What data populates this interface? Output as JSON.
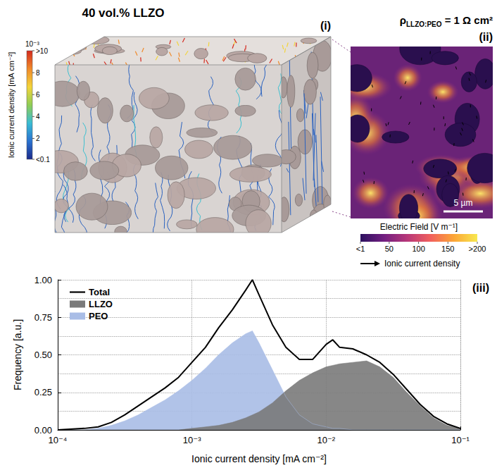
{
  "title": "40 vol.% LLZO",
  "panel_i": {
    "label": "(i)",
    "colorbar": {
      "title": "Ionic current density [mA cm⁻²]",
      "scale_label": "10⁻³",
      "range": [
        0.1,
        10
      ],
      "ticks": [
        {
          "value": 0.1,
          "label": "<0.1"
        },
        2,
        4,
        6,
        8,
        {
          "value": 10,
          "label": ">10"
        }
      ]
    }
  },
  "panel_ii": {
    "label": "(ii)",
    "title_symbol": "ρ",
    "title_subscript": "LLZO:PEO",
    "title_rest": " = 1 Ω cm²",
    "scale_bar": "5 µm",
    "colorbar": {
      "title": "Electric Field [V m⁻¹]",
      "range": [
        1,
        200
      ],
      "ticks": [
        {
          "value": 1,
          "label": "<1"
        },
        50,
        100,
        150,
        {
          "value": 200,
          "label": ">200"
        }
      ]
    },
    "arrow_legend": "Ionic current density"
  },
  "chart_data": {
    "type": "area",
    "label": "(iii)",
    "x_label": "Ionic current density [mA cm⁻²]",
    "y_label": "Frequency [a.u.]",
    "log": "x",
    "grid": true,
    "legend": "upper left",
    "x": [
      0.0001,
      0.000158,
      0.0002,
      0.000251,
      0.000316,
      0.000398,
      0.000501,
      0.000631,
      0.000794,
      0.001,
      0.00126,
      0.00158,
      0.002,
      0.00251,
      0.00282,
      0.00316,
      0.00398,
      0.00501,
      0.00631,
      0.00794,
      0.01,
      0.0112,
      0.0126,
      0.0158,
      0.02,
      0.0251,
      0.0316,
      0.0398,
      0.0501,
      0.0631,
      0.0794,
      0.1
    ],
    "series": [
      {
        "name": "PEO",
        "type": "area",
        "color": "#a9bde6",
        "values": [
          0,
          0,
          0.01,
          0.03,
          0.06,
          0.1,
          0.15,
          0.2,
          0.26,
          0.33,
          0.41,
          0.5,
          0.58,
          0.64,
          0.66,
          0.58,
          0.4,
          0.22,
          0.1,
          0.04,
          0.02,
          0.01,
          0.01,
          0,
          0,
          0,
          0,
          0,
          0,
          0,
          0,
          0
        ]
      },
      {
        "name": "LLZO",
        "type": "area",
        "color": "#7a7a7a",
        "values": [
          0,
          0,
          0,
          0,
          0,
          0,
          0,
          0,
          0,
          0.01,
          0.02,
          0.03,
          0.05,
          0.08,
          0.1,
          0.12,
          0.18,
          0.26,
          0.33,
          0.38,
          0.42,
          0.43,
          0.44,
          0.45,
          0.46,
          0.42,
          0.35,
          0.25,
          0.16,
          0.08,
          0.03,
          0.01
        ]
      },
      {
        "name": "Total",
        "type": "line",
        "color": "#000000",
        "values": [
          0,
          0.01,
          0.02,
          0.05,
          0.1,
          0.16,
          0.22,
          0.28,
          0.35,
          0.45,
          0.55,
          0.68,
          0.8,
          0.93,
          1.0,
          0.9,
          0.7,
          0.55,
          0.47,
          0.47,
          0.57,
          0.6,
          0.55,
          0.54,
          0.5,
          0.45,
          0.37,
          0.27,
          0.17,
          0.09,
          0.04,
          0.01
        ]
      }
    ],
    "legend_order": [
      "Total",
      "LLZO",
      "PEO"
    ],
    "xlim": [
      0.0001,
      0.1
    ],
    "xticks": [
      {
        "value": 0.0001,
        "label": "10⁻⁴"
      },
      {
        "value": 0.001,
        "label": "10⁻³"
      },
      {
        "value": 0.01,
        "label": "10⁻²"
      },
      {
        "value": 0.1,
        "label": "10⁻¹"
      }
    ],
    "ylim": [
      0,
      1
    ],
    "yticks": [
      {
        "value": 0,
        "label": "0.00"
      },
      {
        "value": 0.25,
        "label": "0.25"
      },
      {
        "value": 0.5,
        "label": "0.50"
      },
      {
        "value": 0.75,
        "label": "0.75"
      },
      {
        "value": 1,
        "label": "1.00"
      }
    ]
  }
}
